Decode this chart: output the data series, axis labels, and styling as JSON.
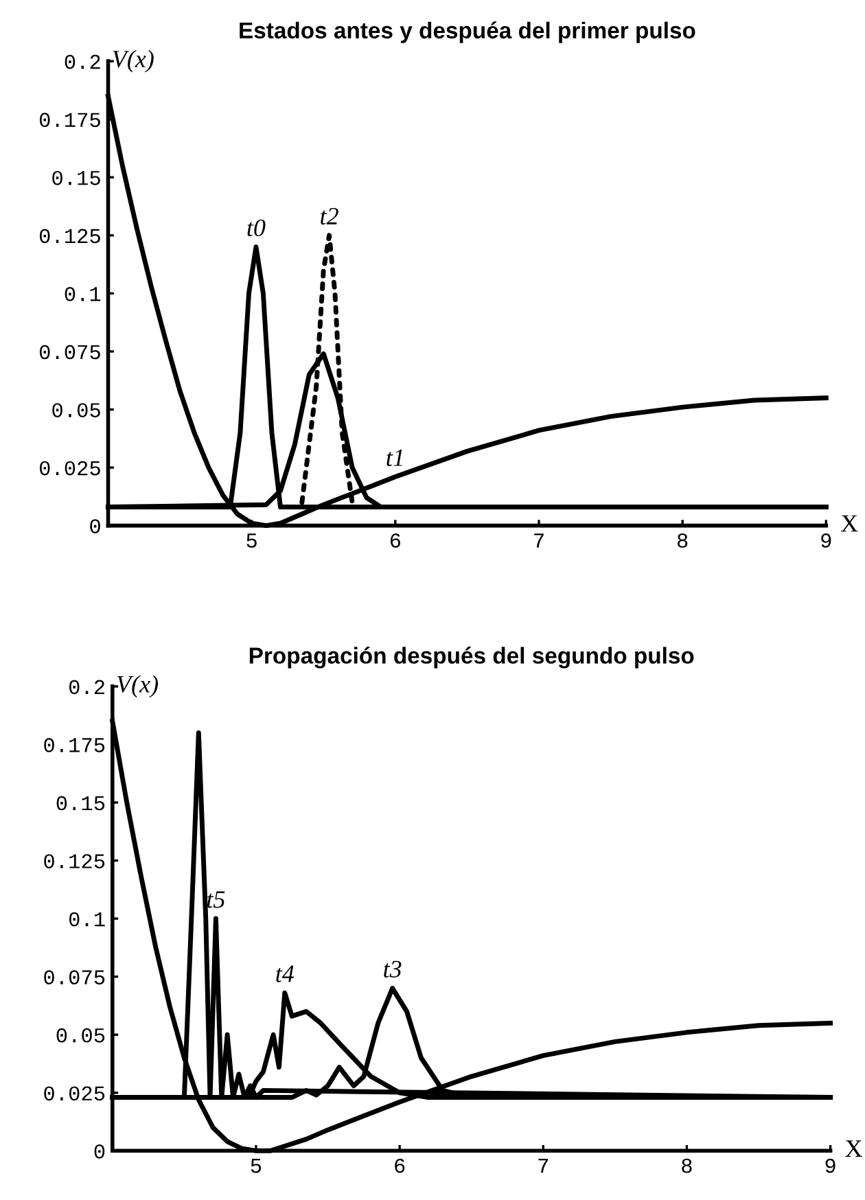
{
  "chart_data": [
    {
      "type": "line",
      "title": "Estados antes y despuéa del primer pulso",
      "xlabel": "X",
      "ylabel": "V(x)",
      "xlim": [
        4,
        9
      ],
      "ylim": [
        0,
        0.2
      ],
      "xticks": [
        5,
        6,
        7,
        8,
        9
      ],
      "yticks": [
        0,
        0.025,
        0.05,
        0.075,
        0.1,
        0.125,
        0.15,
        0.175,
        0.2
      ],
      "grid": false,
      "series": [
        {
          "color": "#000000",
          "line_style": "solid",
          "x": [
            4.0,
            4.1,
            4.2,
            4.3,
            4.4,
            4.5,
            4.6,
            4.7,
            4.8,
            4.9,
            5.0,
            5.1,
            5.2,
            5.35,
            5.5,
            5.75,
            6.0,
            6.5,
            7.0,
            7.5,
            8.0,
            8.5,
            9.0
          ],
          "values": [
            0.185,
            0.155,
            0.128,
            0.103,
            0.08,
            0.058,
            0.04,
            0.025,
            0.013,
            0.005,
            0.001,
            0.0,
            0.001,
            0.005,
            0.009,
            0.015,
            0.021,
            0.032,
            0.041,
            0.047,
            0.051,
            0.054,
            0.055
          ]
        },
        {
          "color": "#000000",
          "line_style": "solid",
          "x": [
            4.0,
            4.85,
            4.92,
            4.98,
            5.03,
            5.08,
            5.14,
            5.2,
            9.0
          ],
          "values": [
            0.008,
            0.008,
            0.04,
            0.1,
            0.12,
            0.1,
            0.04,
            0.008,
            0.008
          ]
        },
        {
          "color": "#000000",
          "line_style": "solid",
          "x": [
            4.0,
            5.1,
            5.2,
            5.3,
            5.4,
            5.5,
            5.6,
            5.7,
            5.8,
            5.9,
            9.0
          ],
          "values": [
            0.008,
            0.009,
            0.015,
            0.035,
            0.065,
            0.074,
            0.055,
            0.025,
            0.012,
            0.008,
            0.008
          ]
        },
        {
          "color": "#000000",
          "line_style": "dotted",
          "x": [
            5.35,
            5.45,
            5.5,
            5.54,
            5.58,
            5.63,
            5.7
          ],
          "values": [
            0.01,
            0.06,
            0.11,
            0.125,
            0.1,
            0.04,
            0.01
          ]
        }
      ],
      "annotations": [
        {
          "text": "t0",
          "x": 5.03,
          "y": 0.12
        },
        {
          "text": "t2",
          "x": 5.54,
          "y": 0.125
        },
        {
          "text": "t1",
          "x": 6.0,
          "y": 0.021
        }
      ]
    },
    {
      "type": "line",
      "title": "Propagación después del segundo pulso",
      "xlabel": "X",
      "ylabel": "V(x)",
      "xlim": [
        4,
        9
      ],
      "ylim": [
        0,
        0.2
      ],
      "xticks": [
        5,
        6,
        7,
        8,
        9
      ],
      "yticks": [
        0,
        0.025,
        0.05,
        0.075,
        0.1,
        0.125,
        0.15,
        0.175,
        0.2
      ],
      "grid": false,
      "series": [
        {
          "color": "#000000",
          "line_style": "solid",
          "x": [
            4.0,
            4.1,
            4.2,
            4.3,
            4.4,
            4.5,
            4.6,
            4.7,
            4.8,
            4.9,
            5.0,
            5.1,
            5.2,
            5.35,
            5.5,
            5.75,
            6.0,
            6.5,
            7.0,
            7.5,
            8.0,
            8.5,
            9.0
          ],
          "values": [
            0.185,
            0.15,
            0.118,
            0.088,
            0.062,
            0.04,
            0.022,
            0.01,
            0.004,
            0.001,
            0.0,
            0.0,
            0.002,
            0.005,
            0.009,
            0.015,
            0.021,
            0.032,
            0.041,
            0.047,
            0.051,
            0.054,
            0.055
          ]
        },
        {
          "color": "#000000",
          "line_style": "solid",
          "x": [
            4.0,
            4.5,
            4.55,
            4.6,
            4.65,
            4.68,
            4.72,
            4.76,
            4.8,
            4.84,
            4.88,
            4.92,
            4.96,
            5.0,
            5.05,
            9.0
          ],
          "values": [
            0.023,
            0.023,
            0.1,
            0.18,
            0.1,
            0.023,
            0.1,
            0.023,
            0.05,
            0.023,
            0.033,
            0.023,
            0.028,
            0.023,
            0.026,
            0.023
          ]
        },
        {
          "color": "#000000",
          "line_style": "solid",
          "x": [
            4.0,
            4.95,
            5.0,
            5.05,
            5.12,
            5.16,
            5.2,
            5.25,
            5.35,
            5.45,
            5.6,
            5.8,
            6.0,
            6.2,
            9.0
          ],
          "values": [
            0.023,
            0.023,
            0.03,
            0.034,
            0.05,
            0.036,
            0.068,
            0.058,
            0.06,
            0.055,
            0.045,
            0.032,
            0.025,
            0.023,
            0.023
          ]
        },
        {
          "color": "#000000",
          "line_style": "solid",
          "x": [
            4.0,
            5.25,
            5.35,
            5.42,
            5.5,
            5.58,
            5.68,
            5.75,
            5.85,
            5.95,
            6.05,
            6.15,
            6.3,
            6.5,
            9.0
          ],
          "values": [
            0.023,
            0.023,
            0.026,
            0.024,
            0.028,
            0.036,
            0.028,
            0.032,
            0.055,
            0.07,
            0.06,
            0.04,
            0.026,
            0.023,
            0.023
          ]
        }
      ],
      "annotations": [
        {
          "text": "t5",
          "x": 4.72,
          "y": 0.1
        },
        {
          "text": "t4",
          "x": 5.2,
          "y": 0.068
        },
        {
          "text": "t3",
          "x": 5.95,
          "y": 0.07
        }
      ]
    }
  ]
}
